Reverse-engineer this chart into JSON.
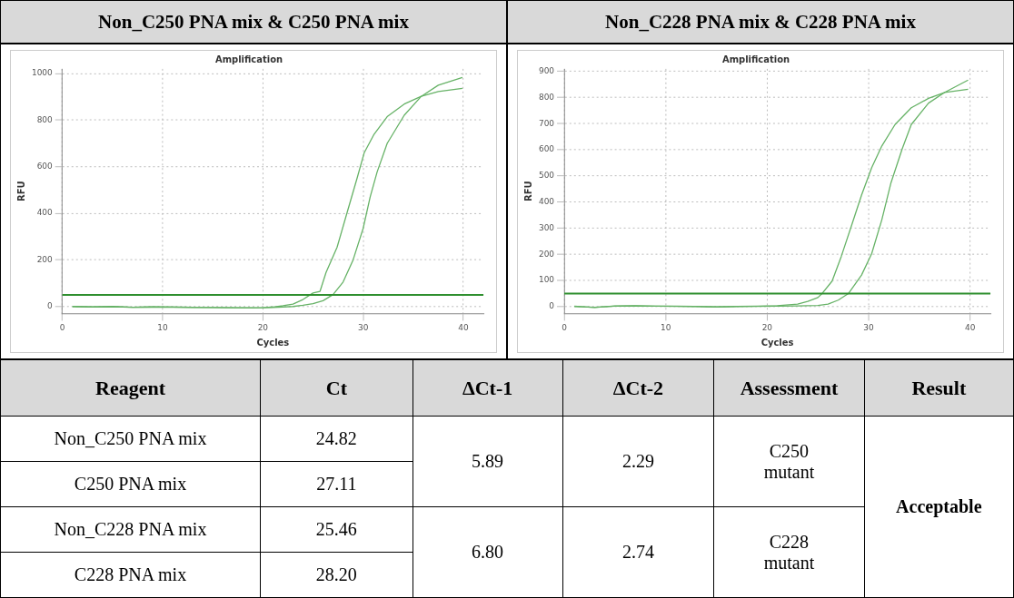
{
  "chart_data": [
    {
      "type": "line",
      "title": "Non_C250 PNA mix & C250 PNA mix",
      "subtitle": "Amplification",
      "xlabel": "Cycles",
      "ylabel": "RFU",
      "series": [
        {
          "color": "#66b266",
          "x": [
            1,
            3,
            5,
            7,
            9,
            11,
            13,
            15,
            17,
            19,
            20,
            21,
            22,
            23,
            24,
            25,
            25.7,
            26.3,
            27.4,
            28.4,
            29.4,
            30.1,
            31.1,
            32.4,
            34.1,
            35.8,
            37.5,
            39.9
          ],
          "values": [
            0,
            -2,
            0,
            -3,
            -2,
            -2,
            -3,
            -4,
            -5,
            -6,
            -5,
            -2,
            3,
            10,
            30,
            58,
            65,
            146,
            254,
            403,
            551,
            659,
            740,
            815,
            869,
            902,
            923,
            936
          ]
        },
        {
          "color": "#66b266",
          "x": [
            1,
            3,
            5,
            7,
            9,
            11,
            13,
            15,
            17,
            19,
            21,
            23,
            24,
            25,
            26,
            27,
            28,
            29,
            30,
            30.7,
            31.4,
            32.4,
            34.1,
            35.8,
            37.5,
            39.9
          ],
          "values": [
            0,
            -2,
            -1,
            -3,
            -2,
            -3,
            -4,
            -4,
            -5,
            -5,
            -4,
            0,
            5,
            12,
            25,
            51,
            105,
            200,
            335,
            470,
            578,
            700,
            821,
            902,
            950,
            983
          ]
        }
      ],
      "ref_lines": [
        {
          "axis": "y",
          "value": 50,
          "color": "#2f8f2f"
        }
      ],
      "xlim": [
        0,
        42
      ],
      "xticks": [
        0,
        10,
        20,
        30,
        40
      ],
      "ylim": [
        -30,
        1020
      ],
      "yticks": [
        0,
        200,
        400,
        600,
        800,
        1000
      ],
      "grid": true,
      "legend": false,
      "marker": "none",
      "line_style": "solid"
    },
    {
      "type": "line",
      "title": "Non_C228 PNA mix & C228 PNA mix",
      "subtitle": "Amplification",
      "xlabel": "Cycles",
      "ylabel": "RFU",
      "series": [
        {
          "color": "#66b266",
          "x": [
            1,
            3,
            5,
            7,
            9,
            11,
            13,
            15,
            17,
            19,
            21,
            23,
            24,
            25,
            25.4,
            26.4,
            27.3,
            28.3,
            29.3,
            30.3,
            31.3,
            32.6,
            34.2,
            35.9,
            37.5,
            39.8
          ],
          "values": [
            2,
            -3,
            3,
            4,
            2,
            2,
            1,
            -1,
            1,
            2,
            4,
            10,
            20,
            35,
            50,
            98,
            192,
            309,
            427,
            532,
            615,
            697,
            761,
            797,
            820,
            832
          ]
        },
        {
          "color": "#66b266",
          "x": [
            1,
            3,
            5,
            7,
            9,
            11,
            13,
            15,
            17,
            19,
            21,
            23,
            25,
            26,
            27,
            28,
            29.3,
            30.3,
            31.3,
            32.2,
            33.3,
            34.2,
            35.9,
            37.5,
            39.8
          ],
          "values": [
            0,
            -2,
            2,
            3,
            2,
            1,
            0,
            -1,
            0,
            1,
            2,
            3,
            5,
            10,
            25,
            50,
            121,
            203,
            333,
            474,
            603,
            697,
            779,
            820,
            867
          ]
        }
      ],
      "ref_lines": [
        {
          "axis": "y",
          "value": 50,
          "color": "#2f8f2f"
        }
      ],
      "xlim": [
        0,
        42
      ],
      "xticks": [
        0,
        10,
        20,
        30,
        40
      ],
      "ylim": [
        -26,
        910
      ],
      "yticks": [
        0,
        100,
        200,
        300,
        400,
        500,
        600,
        700,
        800,
        900
      ],
      "grid": true,
      "legend": false,
      "marker": "none",
      "line_style": "solid"
    },
    {
      "type": "other",
      "categories": [
        "Reagent",
        "Ct",
        "ΔCt-1",
        "ΔCt-2",
        "Assessment",
        "Result"
      ],
      "annotations": [
        "Non_C250 PNA mix",
        "24.82",
        "5.89",
        "2.29",
        "C250 mutant",
        "Acceptable",
        "C250 PNA mix",
        "27.11",
        "Non_C228 PNA mix",
        "25.46",
        "6.80",
        "2.74",
        "C228 mutant",
        "C228 PNA mix",
        "28.20"
      ]
    }
  ]
}
